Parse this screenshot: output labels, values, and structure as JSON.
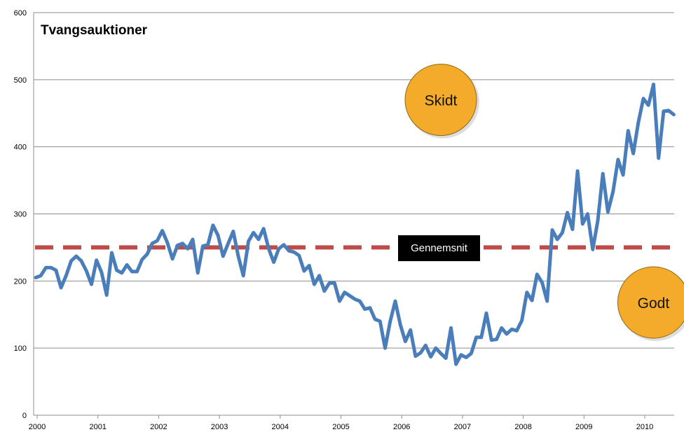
{
  "chart_data": {
    "type": "line",
    "title": "Tvangsauktioner",
    "xlabel": "",
    "ylabel": "",
    "ylim": [
      0,
      600
    ],
    "yticks": [
      0,
      100,
      200,
      300,
      400,
      500,
      600
    ],
    "xticks": [
      "2000",
      "2001",
      "2002",
      "2003",
      "2004",
      "2005",
      "2006",
      "2007",
      "2008",
      "2009",
      "2010"
    ],
    "grid": true,
    "legend": "none",
    "x_start": "2000-01",
    "x_step": "month",
    "series": [
      {
        "name": "",
        "color": "#4a7ebb",
        "values": [
          205,
          208,
          220,
          220,
          216,
          190,
          208,
          230,
          237,
          230,
          215,
          195,
          231,
          213,
          179,
          242,
          216,
          212,
          224,
          214,
          214,
          232,
          240,
          256,
          260,
          275,
          257,
          233,
          253,
          256,
          248,
          262,
          212,
          252,
          254,
          283,
          268,
          237,
          256,
          274,
          237,
          208,
          259,
          272,
          262,
          278,
          248,
          228,
          248,
          254,
          245,
          243,
          238,
          215,
          223,
          195,
          208,
          185,
          197,
          197,
          170,
          183,
          178,
          173,
          170,
          158,
          160,
          143,
          140,
          100,
          140,
          170,
          135,
          110,
          127,
          88,
          93,
          104,
          87,
          100,
          92,
          85,
          130,
          76,
          90,
          86,
          92,
          116,
          116,
          152,
          112,
          113,
          130,
          121,
          128,
          126,
          141,
          183,
          171,
          210,
          198,
          170,
          276,
          262,
          272,
          302,
          277,
          364,
          285,
          300,
          247,
          290,
          360,
          303,
          333,
          381,
          358,
          424,
          390,
          436,
          472,
          462,
          493,
          383,
          453,
          454,
          448
        ]
      },
      {
        "name": "Gennemsnit",
        "color": "#be4b48",
        "values": [
          250,
          250
        ],
        "style": "dashed"
      }
    ],
    "annotations": [
      {
        "text": "Skidt",
        "x": "2006-09",
        "y": 470,
        "color": "#f5ab2a"
      },
      {
        "text": "Godt",
        "x": "2010-03",
        "y": 168,
        "color": "#f5ab2a"
      }
    ],
    "average_label": "Gennemsnit",
    "gridline_color": "#8c8c8c"
  }
}
